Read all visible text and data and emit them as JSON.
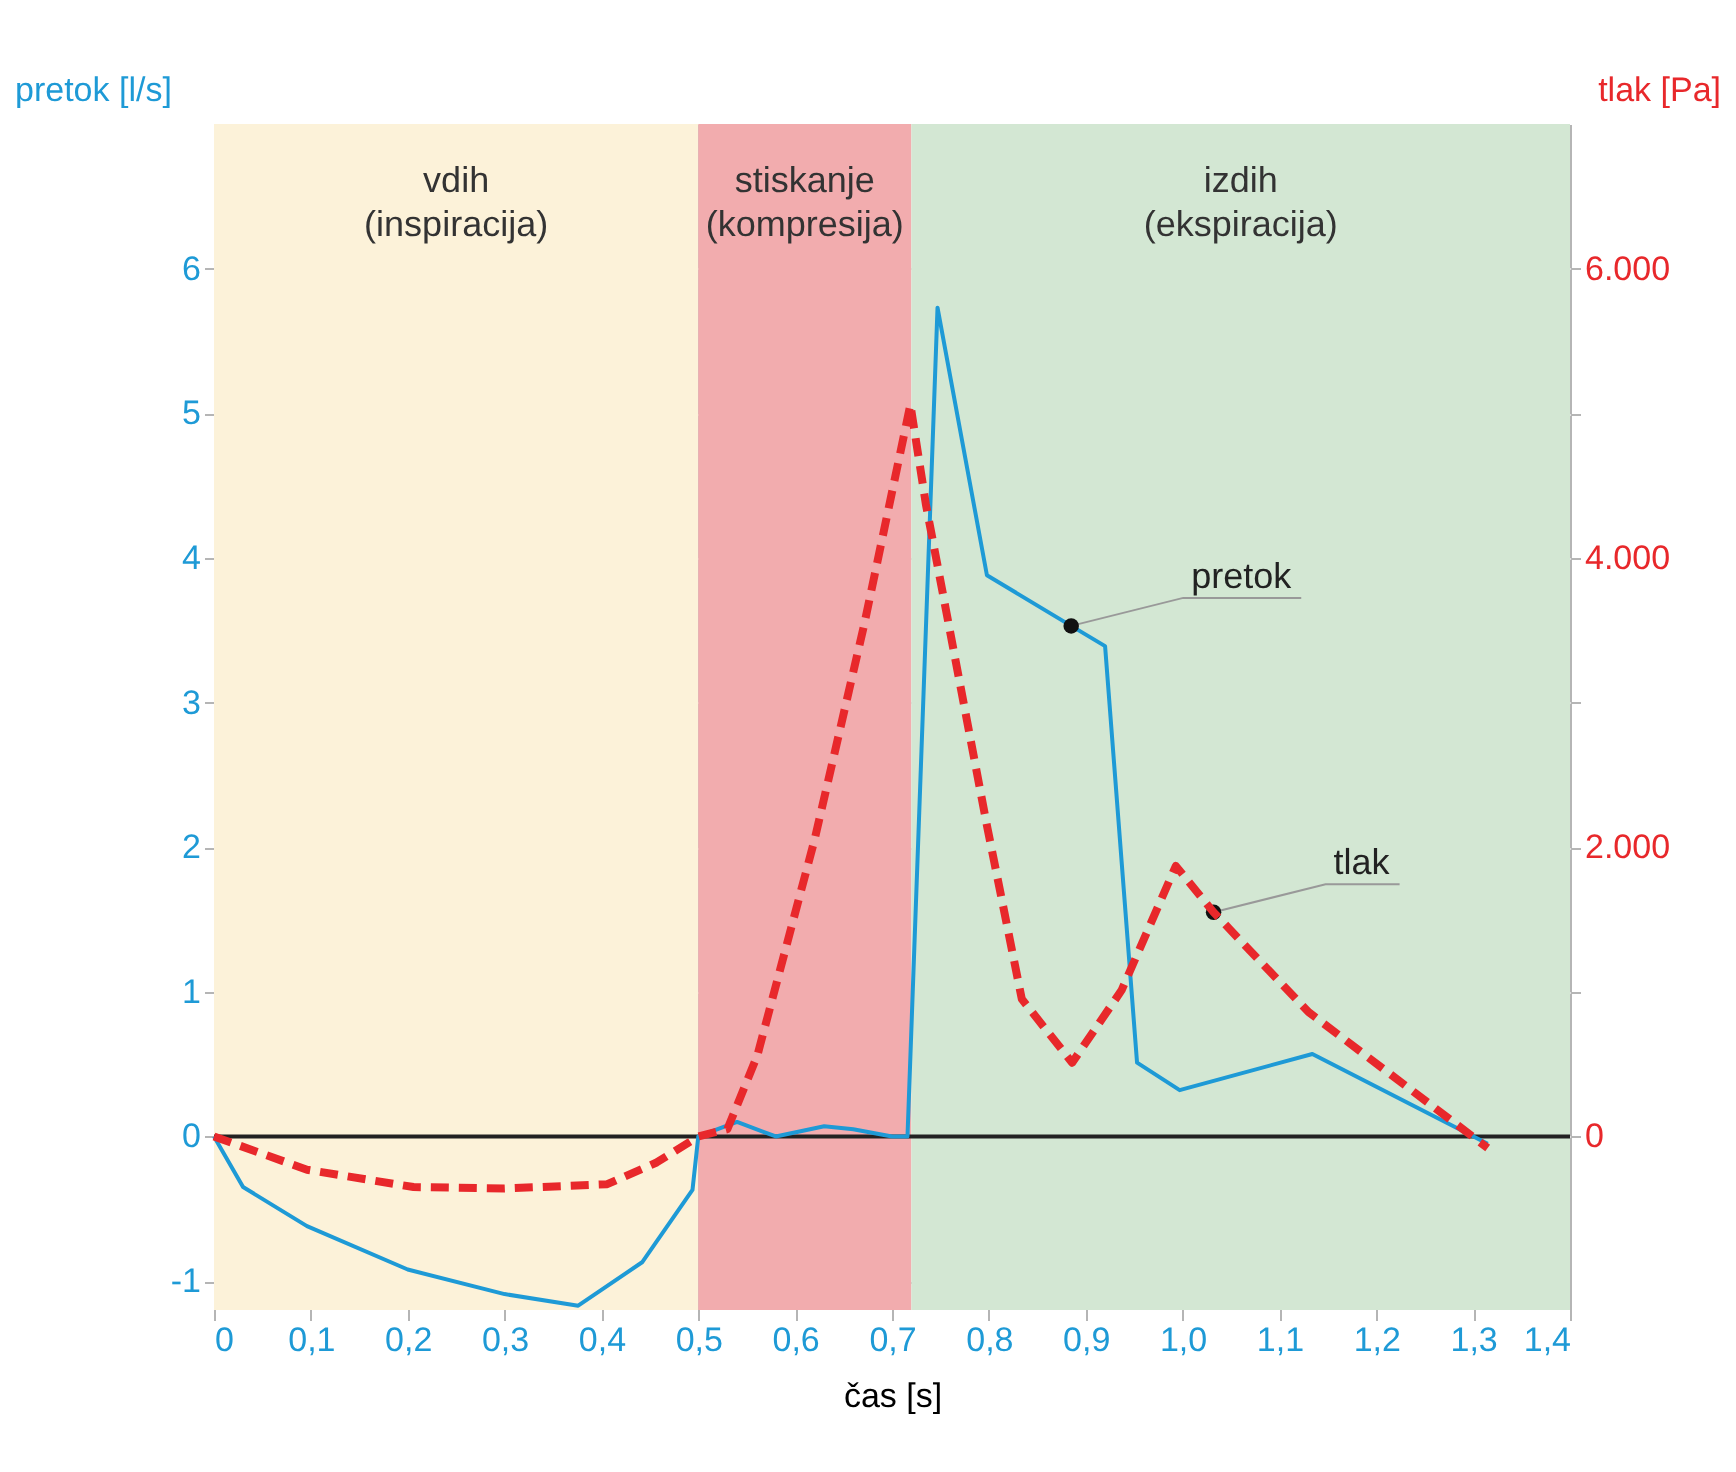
{
  "chart_data": {
    "type": "line",
    "xlabel": "čas [s]",
    "ylabel": "pretok [l/s]",
    "y2label": "tlak [Pa]",
    "xlim": [
      0,
      1.4
    ],
    "xticks": [
      {
        "value": 0,
        "label": "0"
      },
      {
        "value": 0.1,
        "label": "0,1"
      },
      {
        "value": 0.2,
        "label": "0,2"
      },
      {
        "value": 0.3,
        "label": "0,3"
      },
      {
        "value": 0.4,
        "label": "0,4"
      },
      {
        "value": 0.5,
        "label": "0,5"
      },
      {
        "value": 0.6,
        "label": "0,6"
      },
      {
        "value": 0.7,
        "label": "0,7"
      },
      {
        "value": 0.8,
        "label": "0,8"
      },
      {
        "value": 0.9,
        "label": "0,9"
      },
      {
        "value": 1,
        "label": "1,0"
      },
      {
        "value": 1.1,
        "label": "1,1"
      },
      {
        "value": 1.2,
        "label": "1,2"
      },
      {
        "value": 1.3,
        "label": "1,3"
      },
      {
        "value": 1.4,
        "label": "1,4"
      }
    ],
    "ylim": [
      -1.2,
      7
    ],
    "yticks": [
      -1,
      0,
      1,
      2,
      3,
      4,
      5,
      6
    ],
    "y2lim": [
      -1200,
      7000
    ],
    "y2ticks": [
      0,
      {
        "value": 1000,
        "label": null
      },
      {
        "value": 2000,
        "label": "2.000"
      },
      {
        "value": 3000,
        "label": null
      },
      {
        "value": 4000,
        "label": "4.000"
      },
      {
        "value": 5000,
        "label": null
      },
      {
        "value": 6000,
        "label": "6.000"
      }
    ],
    "grid": true,
    "marker": "none",
    "series": [
      {
        "color": "#1e9ad6",
        "line_style": "solid",
        "x": [
          0,
          0.03,
          0.096,
          0.2,
          0.3,
          0.376,
          0.442,
          0.494,
          0.5,
          0.54,
          0.58,
          0.63,
          0.66,
          0.7,
          0.716,
          0.747,
          0.798,
          0.885,
          0.92,
          0.953,
          0.997,
          1.134,
          1.315
        ],
        "values": [
          0,
          -0.35,
          -0.62,
          -0.92,
          -1.09,
          -1.17,
          -0.87,
          -0.37,
          0,
          0.1,
          0,
          0.07,
          0.05,
          0,
          0,
          5.73,
          3.88,
          3.53,
          3.39,
          0.51,
          0.32,
          0.57,
          -0.05
        ]
      },
      {
        "color": "#e8282b",
        "line_style": "dashed",
        "axis": "y2",
        "x": [
          0,
          0.096,
          0.206,
          0.3,
          0.406,
          0.457,
          0.5,
          0.53,
          0.561,
          0.62,
          0.671,
          0.719,
          0.735,
          0.798,
          0.834,
          0.886,
          0.937,
          0.993,
          1.032,
          1.13,
          1.315
        ],
        "values": [
          0,
          -230,
          -350,
          -360,
          -330,
          -180,
          0,
          50,
          560,
          2050,
          3530,
          5060,
          4370,
          2150,
          950,
          510,
          1010,
          1870,
          1550,
          860,
          -80
        ]
      }
    ],
    "bands": [
      {
        "axis": "x",
        "from": 0,
        "to": 0.5,
        "label": "vdih (inspiracija)",
        "color": "#fcf2d9"
      },
      {
        "axis": "x",
        "from": 0.5,
        "to": 0.72,
        "label": "stiskanje (kompresija)",
        "color": "#f2acae"
      },
      {
        "axis": "x",
        "from": 0.72,
        "to": 1.4,
        "label": "izdih (ekspiracija)",
        "color": "#d3e7d3"
      }
    ],
    "ref_lines": [
      {
        "axis": "y",
        "value": 0,
        "color": "#222222"
      }
    ],
    "annotations": [
      {
        "text": "pretok",
        "x": 0.885,
        "y": 3.53
      },
      {
        "text": "tlak",
        "x": 1.032,
        "y": 1.55
      }
    ]
  }
}
